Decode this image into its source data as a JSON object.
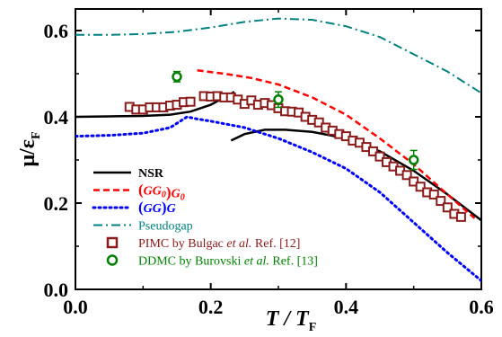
{
  "chart_data": {
    "type": "line",
    "xlabel": {
      "main": "T / T",
      "sub": "F"
    },
    "ylabel": {
      "main": "μ/ε",
      "sub": "F"
    },
    "xlim": [
      0.0,
      0.6
    ],
    "ylim": [
      0.0,
      0.65
    ],
    "xticks": [
      "0.0",
      "0.2",
      "0.4",
      "0.6"
    ],
    "yticks": [
      "0.0",
      "0.2",
      "0.4",
      "0.6"
    ],
    "grid": false,
    "legend_position": "lower-left",
    "series": [
      {
        "name": "NSR",
        "color": "#000000",
        "style": "solid",
        "segments": [
          [
            [
              0.0,
              0.4
            ],
            [
              0.05,
              0.401
            ],
            [
              0.1,
              0.402
            ],
            [
              0.14,
              0.405
            ],
            [
              0.17,
              0.412
            ],
            [
              0.2,
              0.428
            ],
            [
              0.22,
              0.445
            ],
            [
              0.235,
              0.458
            ]
          ],
          [
            [
              0.23,
              0.345
            ],
            [
              0.25,
              0.36
            ],
            [
              0.28,
              0.37
            ],
            [
              0.31,
              0.37
            ],
            [
              0.35,
              0.365
            ],
            [
              0.4,
              0.35
            ],
            [
              0.45,
              0.32
            ],
            [
              0.5,
              0.275
            ],
            [
              0.55,
              0.22
            ],
            [
              0.6,
              0.16
            ]
          ]
        ]
      },
      {
        "name": "(GG0)G0",
        "label_parts": [
          "(",
          "GG",
          "0",
          ")",
          "G",
          "0"
        ],
        "color": "#ff0000",
        "style": "dashed",
        "segments": [
          [
            [
              0.18,
              0.508
            ],
            [
              0.22,
              0.5
            ],
            [
              0.26,
              0.49
            ],
            [
              0.3,
              0.475
            ],
            [
              0.35,
              0.445
            ],
            [
              0.4,
              0.405
            ],
            [
              0.45,
              0.35
            ],
            [
              0.5,
              0.29
            ],
            [
              0.55,
              0.22
            ],
            [
              0.59,
              0.165
            ]
          ]
        ]
      },
      {
        "name": "(GG)G",
        "label_parts": [
          "(",
          "GG",
          ")",
          "G"
        ],
        "color": "#0000ff",
        "style": "dotted",
        "segments": [
          [
            [
              0.0,
              0.355
            ],
            [
              0.05,
              0.357
            ],
            [
              0.1,
              0.362
            ],
            [
              0.14,
              0.375
            ],
            [
              0.165,
              0.4
            ],
            [
              0.18,
              0.395
            ],
            [
              0.2,
              0.39
            ],
            [
              0.25,
              0.375
            ],
            [
              0.3,
              0.35
            ],
            [
              0.35,
              0.318
            ],
            [
              0.4,
              0.28
            ],
            [
              0.45,
              0.225
            ],
            [
              0.5,
              0.155
            ],
            [
              0.55,
              0.085
            ],
            [
              0.6,
              0.02
            ]
          ]
        ]
      },
      {
        "name": "Pseudogap",
        "color": "#008080",
        "style": "dashdot",
        "segments": [
          [
            [
              0.0,
              0.59
            ],
            [
              0.05,
              0.59
            ],
            [
              0.1,
              0.592
            ],
            [
              0.15,
              0.597
            ],
            [
              0.2,
              0.607
            ],
            [
              0.25,
              0.62
            ],
            [
              0.3,
              0.628
            ],
            [
              0.35,
              0.625
            ],
            [
              0.4,
              0.61
            ],
            [
              0.45,
              0.585
            ],
            [
              0.5,
              0.545
            ],
            [
              0.55,
              0.505
            ],
            [
              0.6,
              0.455
            ]
          ]
        ]
      },
      {
        "name": "PIMC by Bulgac et al. Ref. [12]",
        "label_parts": [
          "PIMC by Bulgac ",
          "et al.",
          " Ref. [12]"
        ],
        "color": "#8b1a1a",
        "style": "markers-square",
        "points": [
          [
            0.08,
            0.423
          ],
          [
            0.09,
            0.417
          ],
          [
            0.1,
            0.417
          ],
          [
            0.11,
            0.422
          ],
          [
            0.12,
            0.422
          ],
          [
            0.13,
            0.422
          ],
          [
            0.14,
            0.426
          ],
          [
            0.15,
            0.428
          ],
          [
            0.16,
            0.434
          ],
          [
            0.17,
            0.435
          ],
          [
            0.19,
            0.448
          ],
          [
            0.2,
            0.447
          ],
          [
            0.21,
            0.448
          ],
          [
            0.22,
            0.445
          ],
          [
            0.23,
            0.445
          ],
          [
            0.24,
            0.44
          ],
          [
            0.25,
            0.43
          ],
          [
            0.26,
            0.438
          ],
          [
            0.27,
            0.428
          ],
          [
            0.28,
            0.432
          ],
          [
            0.29,
            0.427
          ],
          [
            0.3,
            0.42
          ],
          [
            0.31,
            0.413
          ],
          [
            0.32,
            0.412
          ],
          [
            0.33,
            0.41
          ],
          [
            0.34,
            0.4
          ],
          [
            0.35,
            0.393
          ],
          [
            0.36,
            0.387
          ],
          [
            0.37,
            0.375
          ],
          [
            0.38,
            0.368
          ],
          [
            0.39,
            0.36
          ],
          [
            0.4,
            0.355
          ],
          [
            0.41,
            0.345
          ],
          [
            0.42,
            0.34
          ],
          [
            0.43,
            0.33
          ],
          [
            0.44,
            0.32
          ],
          [
            0.45,
            0.308
          ],
          [
            0.46,
            0.295
          ],
          [
            0.47,
            0.285
          ],
          [
            0.48,
            0.275
          ],
          [
            0.49,
            0.265
          ],
          [
            0.5,
            0.25
          ],
          [
            0.51,
            0.238
          ],
          [
            0.52,
            0.225
          ],
          [
            0.53,
            0.22
          ],
          [
            0.54,
            0.205
          ],
          [
            0.55,
            0.19
          ],
          [
            0.56,
            0.175
          ],
          [
            0.57,
            0.168
          ]
        ]
      },
      {
        "name": "DDMC by Burovski et al. Ref. [13]",
        "label_parts": [
          "DDMC by Burovski ",
          "et al.",
          " Ref. [13]"
        ],
        "color": "#008000",
        "style": "markers-circle",
        "points": [
          {
            "x": 0.15,
            "y": 0.493,
            "err": 0.012
          },
          {
            "x": 0.3,
            "y": 0.44,
            "err": 0.018
          },
          {
            "x": 0.5,
            "y": 0.3,
            "err": 0.022
          }
        ]
      }
    ]
  }
}
